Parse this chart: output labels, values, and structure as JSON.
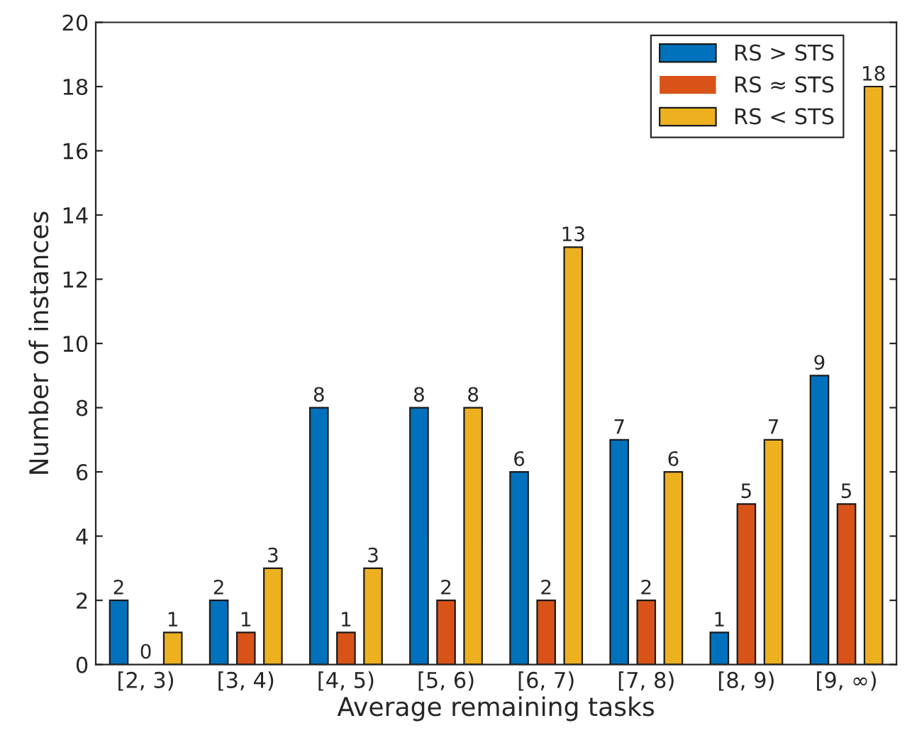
{
  "chart_data": {
    "type": "bar",
    "xlabel": "Average remaining tasks",
    "ylabel": "Number of instances",
    "categories": [
      "[2, 3)",
      "[3, 4)",
      "[4, 5)",
      "[5, 6)",
      "[6, 7)",
      "[7, 8)",
      "[8, 9)",
      "[9, ∞)"
    ],
    "series": [
      {
        "name": "RS > STS",
        "color": "#0072bd",
        "values": [
          2,
          2,
          8,
          8,
          6,
          7,
          1,
          9
        ]
      },
      {
        "name": "RS ≈ STS",
        "color": "#d95319",
        "values": [
          0,
          1,
          1,
          2,
          2,
          2,
          5,
          5
        ]
      },
      {
        "name": "RS < STS",
        "color": "#edb120",
        "values": [
          1,
          3,
          3,
          8,
          13,
          6,
          7,
          18
        ]
      }
    ],
    "ylim": [
      0,
      20
    ],
    "yticks": [
      0,
      2,
      4,
      6,
      8,
      10,
      12,
      14,
      16,
      18,
      20
    ],
    "grid": false,
    "legend": "top right",
    "data_labels": true
  }
}
